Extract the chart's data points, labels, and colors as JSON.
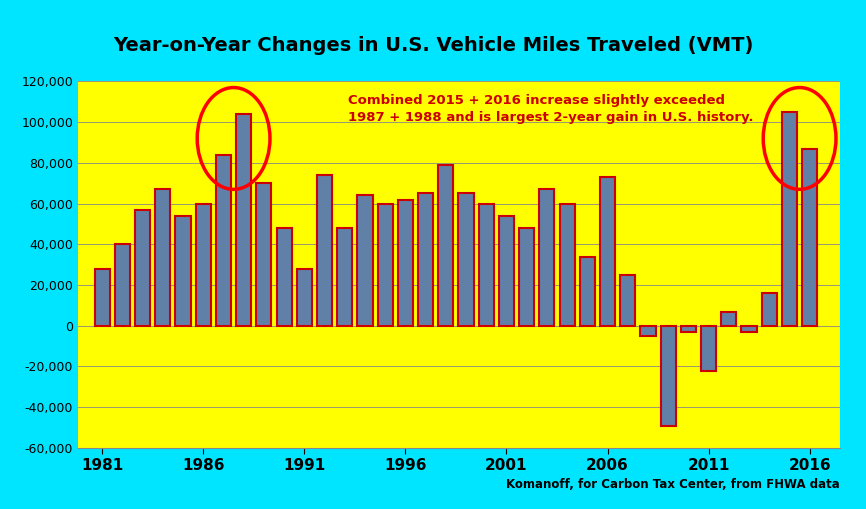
{
  "title": "Year-on-Year Changes in U.S. Vehicle Miles Traveled (VMT)",
  "years": [
    1981,
    1982,
    1983,
    1984,
    1985,
    1986,
    1987,
    1988,
    1989,
    1990,
    1991,
    1992,
    1993,
    1994,
    1995,
    1996,
    1997,
    1998,
    1999,
    2000,
    2001,
    2002,
    2003,
    2004,
    2005,
    2006,
    2007,
    2008,
    2009,
    2010,
    2011,
    2012,
    2013,
    2014,
    2015,
    2016
  ],
  "values": [
    28000,
    40000,
    57000,
    67000,
    54000,
    60000,
    84000,
    104000,
    70000,
    48000,
    28000,
    74000,
    48000,
    64000,
    60000,
    62000,
    65000,
    79000,
    65000,
    60000,
    54000,
    48000,
    67000,
    60000,
    34000,
    73000,
    25000,
    -5000,
    -49000,
    -3000,
    -22000,
    7000,
    -3000,
    16000,
    105000,
    87000
  ],
  "annotation_text": "Combined 2015 + 2016 increase slightly exceeded\n1987 + 1988 and is largest 2-year gain in U.S. history.",
  "source_text": "Komanoff, for Carbon Tax Center, from FHWA data",
  "bar_facecolor": "#6080a8",
  "bar_edgecolor": "#cc0000",
  "plot_bg_color": "#ffff00",
  "outer_bg_color": "#00e5ff",
  "annotation_color": "#cc0000",
  "title_color": "#000000",
  "ylim": [
    -60000,
    120000
  ],
  "yticks": [
    -60000,
    -40000,
    -20000,
    0,
    20000,
    40000,
    60000,
    80000,
    100000,
    120000
  ],
  "xticks": [
    1981,
    1986,
    1991,
    1996,
    2001,
    2006,
    2011,
    2016
  ]
}
